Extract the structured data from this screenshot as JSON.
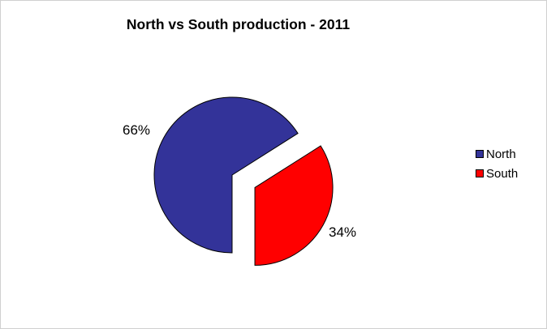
{
  "chart_data": {
    "type": "pie",
    "title": "North vs South production - 2011",
    "categories": [
      "North",
      "South"
    ],
    "values": [
      66,
      34
    ],
    "data_labels": [
      "66%",
      "34%"
    ],
    "colors": [
      "#333399",
      "#ff0000"
    ],
    "exploded": "South",
    "legend_position": "right"
  }
}
